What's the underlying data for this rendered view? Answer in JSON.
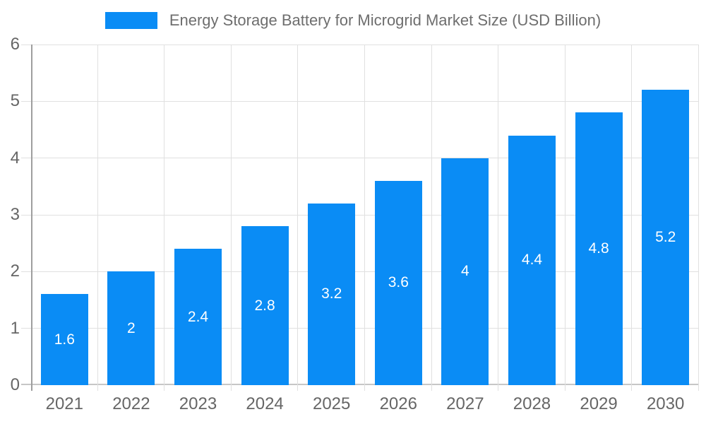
{
  "chart_data": {
    "type": "bar",
    "title": "Energy Storage Battery for Microgrid Market Size (USD Billion)",
    "categories": [
      "2021",
      "2022",
      "2023",
      "2024",
      "2025",
      "2026",
      "2027",
      "2028",
      "2029",
      "2030"
    ],
    "values": [
      1.6,
      2,
      2.4,
      2.8,
      3.2,
      3.6,
      4,
      4.4,
      4.8,
      5.2
    ],
    "value_labels": [
      "1.6",
      "2",
      "2.4",
      "2.8",
      "3.2",
      "3.6",
      "4",
      "4.4",
      "4.8",
      "5.2"
    ],
    "xlabel": "",
    "ylabel": "",
    "ylim": [
      0,
      6
    ],
    "yticks": [
      0,
      1,
      2,
      3,
      4,
      5,
      6
    ],
    "grid": true,
    "legend_position": "top",
    "colors": {
      "bar": "#0a8cf5",
      "bar_value_text": "#ffffff",
      "axis_line": "#9e9e9e",
      "gridline": "#e0e0e0",
      "baseline": "#c6c6c6",
      "axis_text": "#666666",
      "title_text": "#6e6e6e",
      "background": "#ffffff"
    }
  }
}
